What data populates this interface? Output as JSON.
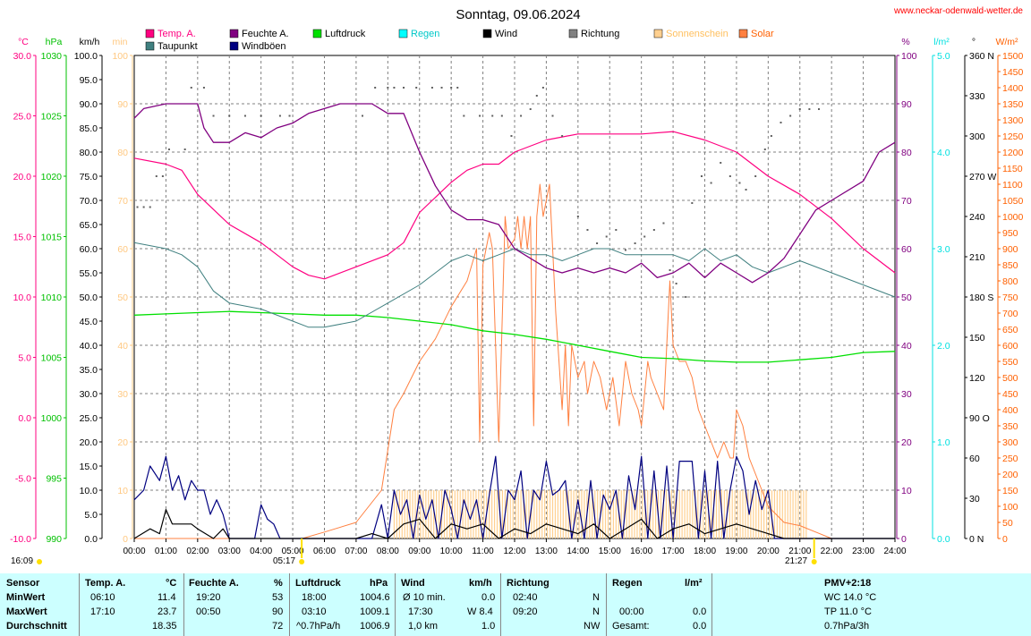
{
  "chart_data": {
    "type": "line",
    "title": "Sonntag, 09.06.2024",
    "source": "www.neckar-odenwald-wetter.de",
    "x_ticks": [
      "00:00",
      "01:00",
      "02:00",
      "03:00",
      "04:00",
      "05:00",
      "06:00",
      "07:00",
      "08:00",
      "09:00",
      "10:00",
      "11:00",
      "12:00",
      "13:00",
      "14:00",
      "15:00",
      "16:00",
      "17:00",
      "18:00",
      "19:00",
      "20:00",
      "21:00",
      "22:00",
      "23:00",
      "24:00"
    ],
    "axes": {
      "temp": {
        "unit": "°C",
        "color": "#ff0080",
        "ticks": [
          "30.0",
          "25.0",
          "20.0",
          "15.0",
          "10.0",
          "5.0",
          "0.0",
          "-5.0",
          "-10.0"
        ],
        "min": -10,
        "max": 30
      },
      "press": {
        "unit": "hPa",
        "color": "#00c000",
        "ticks": [
          "1030",
          "1025",
          "1020",
          "1015",
          "1010",
          "1005",
          "1000",
          "995",
          "990"
        ],
        "min": 990,
        "max": 1030
      },
      "wind": {
        "unit": "km/h",
        "color": "#000000",
        "ticks": [
          "100.0",
          "95.0",
          "90.0",
          "85.0",
          "80.0",
          "75.0",
          "70.0",
          "65.0",
          "60.0",
          "55.0",
          "50.0",
          "45.0",
          "40.0",
          "35.0",
          "30.0",
          "25.0",
          "20.0",
          "15.0",
          "10.0",
          "5.0",
          "0.0"
        ],
        "min": 0,
        "max": 100
      },
      "sun": {
        "unit": "min",
        "color": "#ffc880",
        "ticks": [
          "100",
          "90",
          "80",
          "70",
          "60",
          "50",
          "40",
          "30",
          "20",
          "10",
          "0"
        ],
        "min": 0,
        "max": 100
      },
      "hum": {
        "unit": "%",
        "color": "#800080",
        "ticks": [
          "100",
          "90",
          "80",
          "70",
          "60",
          "50",
          "40",
          "30",
          "20",
          "10",
          "0"
        ],
        "min": 0,
        "max": 100
      },
      "rain": {
        "unit": "l/m²",
        "color": "#00e0e0",
        "ticks": [
          "5.0",
          "4.0",
          "3.0",
          "2.0",
          "1.0",
          "0.0"
        ],
        "min": 0,
        "max": 5
      },
      "dir": {
        "unit": "°",
        "color": "#000000",
        "ticks": [
          "360 N",
          "330",
          "300",
          "270 W",
          "240",
          "210",
          "180 S",
          "150",
          "120",
          "90 O",
          "60",
          "30",
          "0 N"
        ],
        "min": 0,
        "max": 360
      },
      "solar": {
        "unit": "W/m²",
        "color": "#ff6000",
        "ticks": [
          "1500",
          "1450",
          "1400",
          "1350",
          "1300",
          "1250",
          "1200",
          "1150",
          "1100",
          "1050",
          "1000",
          "950",
          "900",
          "850",
          "800",
          "750",
          "700",
          "650",
          "600",
          "550",
          "500",
          "450",
          "400",
          "350",
          "300",
          "250",
          "200",
          "150",
          "100",
          "50",
          "0"
        ],
        "min": 0,
        "max": 1500
      }
    },
    "legend": [
      {
        "name": "Temp. A.",
        "color": "#ff0080"
      },
      {
        "name": "Taupunkt",
        "color": "#408080"
      },
      {
        "name": "Feuchte A.",
        "color": "#800080"
      },
      {
        "name": "Windböen",
        "color": "#000080"
      },
      {
        "name": "Luftdruck",
        "color": "#00e000"
      },
      {
        "name": "Regen",
        "color": "#00ffff"
      },
      {
        "name": "Wind",
        "color": "#000000"
      },
      {
        "name": "Richtung",
        "color": "#808080"
      },
      {
        "name": "Sonnenschein",
        "color": "#ffd090"
      },
      {
        "name": "Solar",
        "color": "#ff8040"
      }
    ],
    "sunrise": "05:17",
    "sunset": "21:27",
    "time_label": "16:09",
    "series": {
      "temp": {
        "hours": [
          0,
          1,
          1.5,
          2,
          3,
          4,
          5,
          5.5,
          6,
          7,
          8,
          8.5,
          9,
          10,
          10.5,
          11,
          11.5,
          12,
          13,
          14,
          15,
          16,
          17,
          18,
          19,
          19.5,
          20,
          21,
          22,
          23,
          24
        ],
        "values": [
          21.5,
          21,
          20.5,
          18.5,
          16,
          14.5,
          12.5,
          11.8,
          11.5,
          12.5,
          13.5,
          14.5,
          17,
          19.5,
          20.5,
          21,
          21,
          22,
          23,
          23.5,
          23.5,
          23.5,
          23.7,
          23,
          22,
          21,
          20,
          18.5,
          16.5,
          14,
          12
        ]
      },
      "dew": {
        "hours": [
          0,
          1,
          1.5,
          2,
          2.5,
          3,
          4,
          5,
          5.5,
          6,
          7,
          8,
          9,
          10,
          10.5,
          11,
          11.5,
          12,
          12.5,
          13,
          13.5,
          14,
          14.5,
          15,
          15.5,
          16,
          16.5,
          17,
          17.5,
          18,
          18.5,
          19,
          19.5,
          20,
          20.5,
          21,
          22,
          23,
          24
        ],
        "values": [
          14.5,
          14,
          13.5,
          12.5,
          10.5,
          9.5,
          9,
          8,
          7.5,
          7.5,
          8,
          9.5,
          11,
          13,
          13.5,
          13,
          13.5,
          14,
          13.5,
          13.5,
          13,
          13.5,
          14,
          14,
          13.5,
          13.5,
          13.5,
          13.5,
          13,
          14,
          13,
          13.5,
          12.5,
          12,
          12.5,
          13,
          12,
          11,
          10
        ]
      },
      "hum": {
        "hours": [
          0,
          0.3,
          1,
          2,
          2.2,
          2.5,
          3,
          3.5,
          4,
          4.5,
          5,
          5.5,
          6,
          6.5,
          7,
          7.5,
          8,
          8.5,
          9,
          9.5,
          10,
          10.5,
          11,
          11.5,
          12,
          12.5,
          13,
          13.5,
          14,
          14.5,
          15,
          15.5,
          16,
          16.5,
          17,
          17.5,
          18,
          18.5,
          19,
          19.5,
          20,
          20.5,
          21,
          21.5,
          22,
          23,
          23.5,
          24
        ],
        "values": [
          87,
          89,
          90,
          90,
          85,
          82,
          82,
          84,
          83,
          85,
          86,
          88,
          89,
          90,
          90,
          90,
          88,
          88,
          80,
          73,
          68,
          66,
          66,
          65,
          60,
          58,
          56,
          55,
          56,
          55,
          56,
          55,
          57,
          54,
          55,
          57,
          54,
          57,
          55,
          53,
          55,
          58,
          63,
          68,
          70,
          74,
          80,
          82
        ]
      },
      "press": {
        "hours": [
          0,
          1,
          2,
          3,
          4,
          5,
          6,
          7,
          8,
          9,
          10,
          11,
          12,
          13,
          14,
          15,
          16,
          17,
          18,
          19,
          20,
          21,
          22,
          23,
          24
        ],
        "values": [
          1008.5,
          1008.6,
          1008.7,
          1008.8,
          1008.7,
          1008.6,
          1008.5,
          1008.5,
          1008.3,
          1008.0,
          1007.7,
          1007.2,
          1006.9,
          1006.5,
          1006.0,
          1005.5,
          1005.0,
          1004.9,
          1004.7,
          1004.6,
          1004.6,
          1004.8,
          1005.0,
          1005.4,
          1005.5
        ]
      },
      "solar": {
        "hours": [
          0,
          5.3,
          6,
          7,
          7.8,
          8.2,
          8.5,
          9,
          9.5,
          10,
          10.5,
          10.8,
          10.9,
          11,
          11.2,
          11.3,
          11.5,
          11.7,
          11.8,
          12,
          12.1,
          12.2,
          12.3,
          12.4,
          12.5,
          12.6,
          12.7,
          12.8,
          12.9,
          13,
          13.1,
          13.2,
          13.3,
          13.4,
          13.5,
          13.6,
          13.7,
          13.8,
          14,
          14.2,
          14.3,
          14.5,
          14.7,
          14.9,
          15.1,
          15.3,
          15.5,
          15.7,
          15.9,
          16,
          16.2,
          16.3,
          16.5,
          16.7,
          16.9,
          17,
          17.2,
          17.4,
          17.6,
          17.8,
          18,
          18.2,
          18.4,
          18.6,
          18.8,
          18.9,
          19,
          19.2,
          19.4,
          19.6,
          20,
          20.5,
          21,
          21.5,
          22,
          24
        ],
        "values": [
          0,
          0,
          20,
          50,
          150,
          400,
          450,
          550,
          620,
          720,
          800,
          900,
          300,
          850,
          950,
          900,
          300,
          1000,
          900,
          930,
          1000,
          900,
          1000,
          900,
          1000,
          350,
          1000,
          1100,
          1000,
          1050,
          1100,
          900,
          700,
          550,
          400,
          600,
          350,
          600,
          500,
          550,
          450,
          550,
          500,
          400,
          500,
          350,
          550,
          450,
          400,
          350,
          550,
          500,
          450,
          400,
          800,
          600,
          550,
          550,
          500,
          400,
          350,
          300,
          250,
          300,
          250,
          250,
          400,
          350,
          250,
          200,
          100,
          50,
          40,
          20,
          0,
          0
        ]
      },
      "wind": {
        "hours": [
          0,
          0.5,
          0.8,
          1,
          1.2,
          1.5,
          1.8,
          2,
          2.5,
          2.8,
          3,
          6,
          7,
          7.5,
          8,
          8.5,
          9,
          9.5,
          10,
          10.5,
          11,
          11.5,
          12,
          12.5,
          13,
          13.5,
          14,
          14.5,
          15,
          15.5,
          16,
          16.5,
          17,
          17.5,
          18,
          18.5,
          19,
          19.5,
          20,
          20.5,
          21,
          24
        ],
        "values": [
          0,
          2,
          1,
          6,
          3,
          3,
          3,
          2,
          0,
          2,
          0,
          0,
          0,
          1,
          0,
          3,
          4,
          0,
          3,
          2,
          3,
          0,
          2,
          1,
          3,
          2,
          1,
          3,
          0,
          2,
          4,
          0,
          2,
          3,
          1,
          2,
          3,
          2,
          1,
          0,
          0,
          0
        ]
      },
      "gust": {
        "hours": [
          0,
          0.3,
          0.5,
          0.8,
          1,
          1.2,
          1.4,
          1.6,
          1.8,
          2,
          2.2,
          2.4,
          2.6,
          2.8,
          3,
          3.2,
          3.5,
          3.8,
          4,
          4.2,
          4.4,
          4.6,
          4.8,
          5,
          6,
          7,
          7.5,
          7.8,
          8,
          8.2,
          8.4,
          8.6,
          8.8,
          9,
          9.2,
          9.4,
          9.6,
          9.8,
          10,
          10.2,
          10.4,
          10.6,
          10.8,
          11,
          11.2,
          11.4,
          11.6,
          11.8,
          12,
          12.2,
          12.4,
          12.6,
          12.8,
          13,
          13.2,
          13.4,
          13.6,
          13.8,
          14,
          14.2,
          14.4,
          14.6,
          14.8,
          15,
          15.2,
          15.4,
          15.6,
          15.8,
          16,
          16.2,
          16.4,
          16.6,
          16.8,
          17,
          17.2,
          17.4,
          17.6,
          17.8,
          18,
          18.2,
          18.4,
          18.6,
          18.8,
          19,
          19.2,
          19.4,
          19.6,
          19.8,
          20,
          20.2,
          20.5,
          24
        ],
        "values": [
          8,
          10,
          15,
          12,
          17,
          10,
          13,
          8,
          12,
          10,
          10,
          5,
          8,
          5,
          0,
          0,
          0,
          0,
          7,
          4,
          3,
          0,
          0,
          0,
          0,
          0,
          0,
          7,
          0,
          10,
          5,
          8,
          0,
          9,
          4,
          8,
          0,
          10,
          6,
          0,
          8,
          4,
          8,
          0,
          9,
          17,
          0,
          10,
          8,
          14,
          0,
          10,
          8,
          16,
          9,
          10,
          12,
          0,
          8,
          0,
          12,
          0,
          9,
          6,
          10,
          0,
          13,
          6,
          17,
          0,
          14,
          0,
          15,
          0,
          16,
          16,
          16,
          0,
          14,
          0,
          16,
          0,
          10,
          17,
          14,
          5,
          12,
          6,
          10,
          0,
          0,
          0
        ]
      },
      "dir": {
        "hours": [
          0.1,
          0.3,
          0.5,
          0.7,
          0.9,
          1.1,
          1.6,
          1.8,
          2.2,
          2.5,
          3,
          3.5,
          4,
          4.6,
          4.9,
          7.2,
          7.6,
          8,
          8.2,
          8.5,
          8.9,
          9.4,
          9.7,
          10,
          10.2,
          10.4,
          10.9,
          11.3,
          11.6,
          11.9,
          12.2,
          12.5,
          12.7,
          12.9,
          13.2,
          13.5,
          14,
          14.3,
          14.6,
          14.9,
          15.2,
          15.5,
          15.8,
          16.1,
          16.4,
          16.7,
          16.9,
          17.1,
          17.4,
          17.6,
          17.9,
          18.2,
          18.5,
          18.8,
          19.1,
          19.3,
          19.6,
          19.9,
          20.1,
          20.4,
          20.7,
          21,
          21.3,
          21.6
        ],
        "values": [
          247,
          247,
          247,
          270,
          270,
          290,
          290,
          336,
          336,
          315,
          315,
          315,
          315,
          315,
          315,
          315,
          336,
          336,
          336,
          336,
          336,
          336,
          336,
          336,
          336,
          315,
          315,
          315,
          315,
          300,
          315,
          320,
          330,
          336,
          315,
          300,
          240,
          230,
          220,
          225,
          230,
          215,
          220,
          225,
          230,
          235,
          200,
          190,
          180,
          250,
          270,
          265,
          280,
          270,
          265,
          260,
          270,
          290,
          300,
          310,
          315,
          320,
          320,
          320
        ]
      },
      "sunshine": {
        "start": 8.2,
        "end": 21.2,
        "level": 10
      }
    }
  },
  "stats": {
    "headers": {
      "sensor": "Sensor",
      "temp": "Temp. A.",
      "temp_unit": "°C",
      "hum": "Feuchte A.",
      "hum_unit": "%",
      "press": "Luftdruck",
      "press_unit": "hPa",
      "wind": "Wind",
      "wind_unit": "km/h",
      "dir": "Richtung",
      "rain": "Regen",
      "rain_unit": "l/m²",
      "pmv": "PMV+2:18"
    },
    "rows": [
      {
        "label": "MinWert",
        "temp_time": "06:10",
        "temp_val": "11.4",
        "hum_time": "19:20",
        "hum_val": "53",
        "press_time": "18:00",
        "press_val": "1004.6",
        "wind_time": "Ø 10 min.",
        "wind_val": "0.0",
        "dir_time": "02:40",
        "dir_val": "N",
        "rain_time": "",
        "rain_val": "",
        "extra": "WC 14.0 °C"
      },
      {
        "label": "MaxWert",
        "temp_time": "17:10",
        "temp_val": "23.7",
        "hum_time": "00:50",
        "hum_val": "90",
        "press_time": "03:10",
        "press_val": "1009.1",
        "wind_time": "17:30",
        "wind_val": "W 8.4",
        "dir_time": "09:20",
        "dir_val": "N",
        "rain_time": "00:00",
        "rain_val": "0.0",
        "extra": "TP 11.0 °C"
      },
      {
        "label": "Durchschnitt",
        "temp_time": "",
        "temp_val": "18.35",
        "hum_time": "",
        "hum_val": "72",
        "press_time": "^0.7hPa/h",
        "press_val": "1006.9",
        "wind_time": "1,0 km",
        "wind_val": "1.0",
        "dir_time": "",
        "dir_val": "NW",
        "rain_time": "Gesamt:",
        "rain_val": "0.0",
        "extra": "0.7hPa/3h"
      }
    ]
  }
}
